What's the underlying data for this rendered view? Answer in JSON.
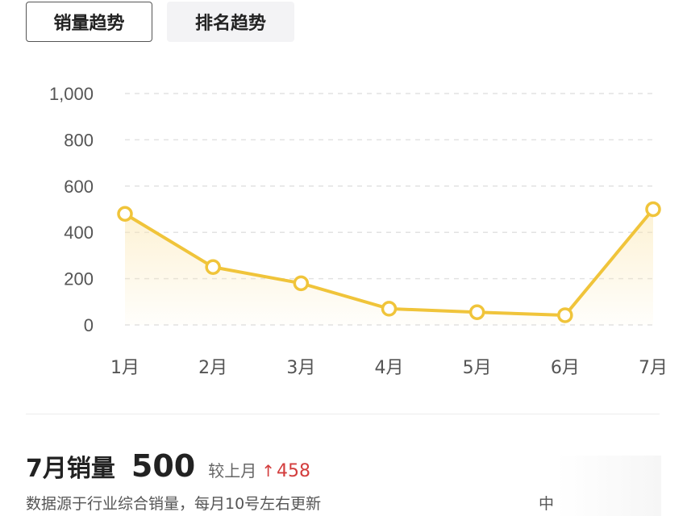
{
  "tabs": [
    {
      "label": "销量趋势",
      "active": true
    },
    {
      "label": "排名趋势",
      "active": false
    }
  ],
  "colors": {
    "line": "#f0c43a",
    "point_fill": "#ffffff",
    "area_top": "#fbe7b0",
    "grid": "#e2e2e2",
    "axis_text": "#555555",
    "up_arrow": "#d33d3d"
  },
  "chart_data": {
    "type": "area",
    "categories": [
      "1月",
      "2月",
      "3月",
      "4月",
      "5月",
      "6月",
      "7月"
    ],
    "values": [
      480,
      250,
      180,
      70,
      55,
      42,
      500
    ],
    "yticks": [
      "0",
      "200",
      "400",
      "600",
      "800",
      "1,000"
    ],
    "ylim": [
      0,
      1000
    ],
    "grid": true,
    "grid_style": "dashed"
  },
  "footer": {
    "label": "7月销量",
    "value": "500",
    "compare_label": "较上月",
    "compare_arrow": "↑",
    "compare_value": "458",
    "note": "数据源于行业综合销量，每月10号左右更新",
    "partial_text": "中"
  }
}
